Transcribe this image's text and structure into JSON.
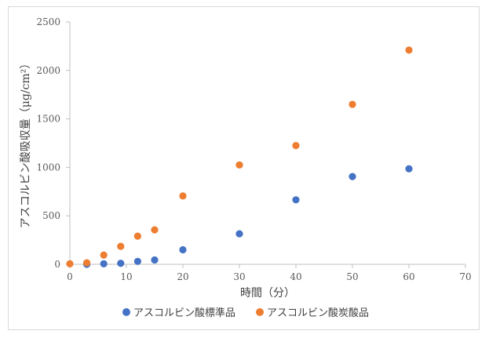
{
  "chart_data": {
    "type": "scatter",
    "title": "",
    "xlabel": "時間（分）",
    "ylabel": "アスコルビン酸吸収量（μg/cm²）",
    "xlim": [
      0,
      70
    ],
    "ylim": [
      0,
      2500
    ],
    "xticks": [
      "0",
      "10",
      "20",
      "30",
      "40",
      "50",
      "60",
      "70"
    ],
    "yticks": [
      "0",
      "500",
      "1000",
      "1500",
      "2000",
      "2500"
    ],
    "grid": false,
    "legend_position": "bottom",
    "series": [
      {
        "name": "アスコルビン酸標準品",
        "color": "#4472c4",
        "x": [
          3,
          6,
          9,
          12,
          15,
          20,
          30,
          40,
          50,
          60
        ],
        "y": [
          0,
          5,
          10,
          30,
          45,
          150,
          315,
          665,
          905,
          985
        ]
      },
      {
        "name": "アスコルビン酸炭酸品",
        "color": "#ed7d31",
        "x": [
          0,
          3,
          6,
          9,
          12,
          15,
          20,
          30,
          40,
          50,
          60
        ],
        "y": [
          5,
          15,
          95,
          185,
          290,
          355,
          705,
          1025,
          1225,
          1650,
          2210
        ]
      }
    ]
  }
}
